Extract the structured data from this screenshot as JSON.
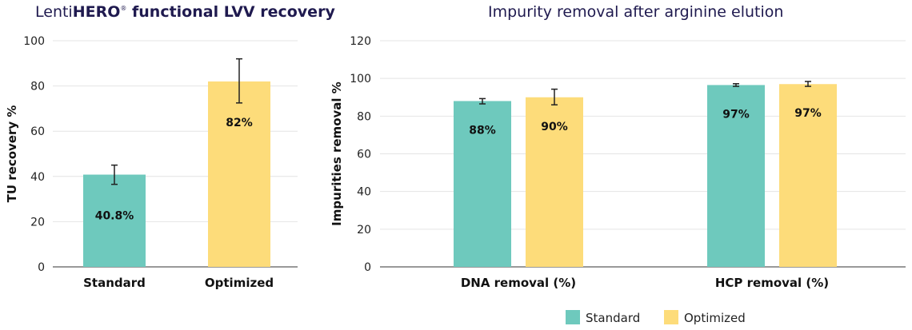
{
  "chart_data": [
    {
      "type": "bar",
      "title_prefix": "Lenti",
      "title_brand": "HERO",
      "title_mark": "®",
      "title_rest": " functional LVV recovery",
      "ylabel": "TU recovery %",
      "ylim": [
        0,
        100
      ],
      "yticks": [
        0,
        20,
        40,
        60,
        80,
        100
      ],
      "categories": [
        "Standard",
        "Optimized"
      ],
      "values": [
        40.8,
        82
      ],
      "error": [
        [
          36.5,
          45
        ],
        [
          72.5,
          92
        ]
      ],
      "labels": [
        "40.8%",
        "82%"
      ],
      "colors": [
        "#6ec9bd",
        "#fddc7a"
      ],
      "grid": true
    },
    {
      "type": "bar",
      "title": "Impurity removal after arginine elution",
      "ylabel": "Impurities removal %",
      "ylim": [
        0,
        120
      ],
      "yticks": [
        0,
        20,
        40,
        60,
        80,
        100,
        120
      ],
      "categories": [
        "DNA removal (%)",
        "HCP removal (%)"
      ],
      "series": [
        {
          "name": "Standard",
          "values": [
            88,
            96.5
          ],
          "error": [
            [
              86.5,
              89.3
            ],
            [
              95.8,
              97.2
            ]
          ],
          "labels": [
            "88%",
            "97%"
          ],
          "color": "#6ec9bd"
        },
        {
          "name": "Optimized",
          "values": [
            90,
            97
          ],
          "error": [
            [
              86,
              94.3
            ],
            [
              95.8,
              98.4
            ]
          ],
          "labels": [
            "90%",
            "97%"
          ],
          "color": "#fddc7a"
        }
      ],
      "legend": "bottom",
      "grid": true
    }
  ]
}
